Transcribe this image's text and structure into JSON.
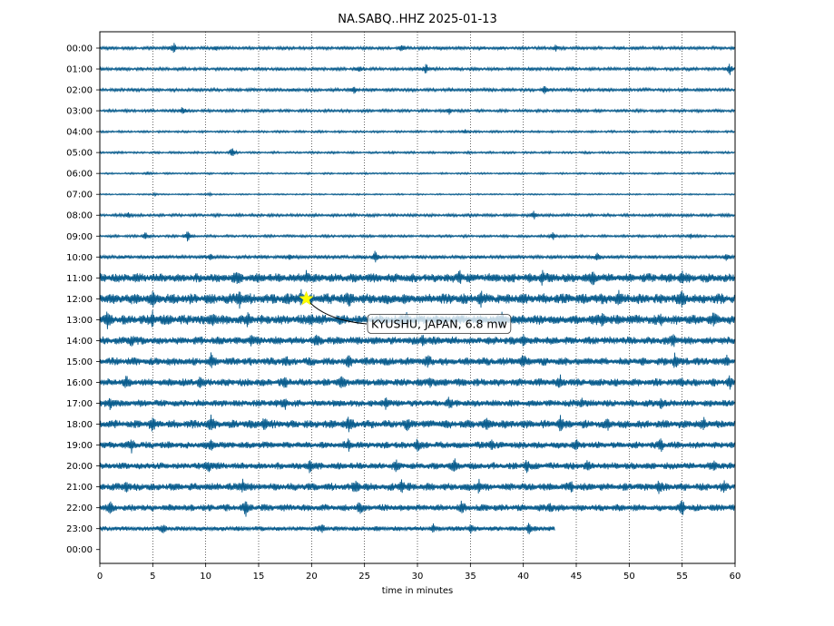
{
  "chart_data": {
    "type": "line",
    "title": "NA.SABQ..HHZ 2025-01-13",
    "xlabel": "time in minutes",
    "ylabel": "",
    "xlim": [
      0,
      60
    ],
    "x_ticks": [
      "0",
      "5",
      "10",
      "15",
      "20",
      "25",
      "30",
      "35",
      "40",
      "45",
      "50",
      "55",
      "60"
    ],
    "y_ticks": [
      "00:00",
      "01:00",
      "02:00",
      "03:00",
      "04:00",
      "05:00",
      "06:00",
      "07:00",
      "08:00",
      "09:00",
      "10:00",
      "11:00",
      "12:00",
      "13:00",
      "14:00",
      "15:00",
      "16:00",
      "17:00",
      "18:00",
      "19:00",
      "20:00",
      "21:00",
      "22:00",
      "23:00",
      "00:00"
    ],
    "grid": "vertical dotted at every 5 minutes",
    "trace_color": "#0a5d8e",
    "traces": [
      {
        "row": "00:00",
        "end_minute": 60,
        "noise": 0.9,
        "spikes": [
          [
            7.0,
            4.5
          ],
          [
            11.0,
            2.0
          ],
          [
            28.5,
            2.8
          ],
          [
            43.0,
            3.0
          ]
        ]
      },
      {
        "row": "01:00",
        "end_minute": 60,
        "noise": 0.9,
        "spikes": [
          [
            24.5,
            2.5
          ],
          [
            30.8,
            4.8
          ],
          [
            59.5,
            4.5
          ]
        ]
      },
      {
        "row": "02:00",
        "end_minute": 60,
        "noise": 0.9,
        "spikes": [
          [
            24.0,
            2.8
          ],
          [
            42.0,
            4.0
          ]
        ]
      },
      {
        "row": "03:00",
        "end_minute": 60,
        "noise": 0.8,
        "spikes": [
          [
            7.8,
            3.6
          ],
          [
            33.0,
            2.5
          ]
        ]
      },
      {
        "row": "04:00",
        "end_minute": 60,
        "noise": 0.6,
        "spikes": [
          [
            34.5,
            2.0
          ]
        ]
      },
      {
        "row": "05:00",
        "end_minute": 60,
        "noise": 0.6,
        "spikes": [
          [
            12.5,
            4.6
          ]
        ]
      },
      {
        "row": "06:00",
        "end_minute": 60,
        "noise": 0.5,
        "spikes": [
          [
            4.5,
            1.0
          ]
        ]
      },
      {
        "row": "07:00",
        "end_minute": 60,
        "noise": 0.4,
        "spikes": [
          [
            5.2,
            1.0
          ],
          [
            10.4,
            1.0
          ]
        ]
      },
      {
        "row": "08:00",
        "end_minute": 60,
        "noise": 0.8,
        "spikes": [
          [
            2.7,
            2.3
          ],
          [
            41.0,
            3.4
          ]
        ]
      },
      {
        "row": "09:00",
        "end_minute": 60,
        "noise": 0.7,
        "spikes": [
          [
            4.3,
            3.8
          ],
          [
            8.3,
            5.0
          ],
          [
            42.8,
            3.2
          ],
          [
            55.8,
            2.0
          ]
        ]
      },
      {
        "row": "10:00",
        "end_minute": 60,
        "noise": 1.0,
        "spikes": [
          [
            10.5,
            3.4
          ],
          [
            18.0,
            2.4
          ],
          [
            26.0,
            5.0
          ],
          [
            47.0,
            3.0
          ],
          [
            59.2,
            3.5
          ]
        ]
      },
      {
        "row": "11:00",
        "end_minute": 60,
        "noise": 2.6,
        "spikes": [
          [
            13.0,
            3.5
          ],
          [
            19.5,
            5.0
          ],
          [
            34.0,
            5.0
          ],
          [
            41.8,
            4.6
          ],
          [
            46.6,
            6.0
          ],
          [
            55.0,
            4.0
          ]
        ]
      },
      {
        "row": "12:00",
        "end_minute": 60,
        "noise": 3.0,
        "spikes": [
          [
            5.0,
            4.0
          ],
          [
            13.2,
            6.0
          ],
          [
            19.0,
            6.0
          ],
          [
            23.5,
            4.0
          ],
          [
            36.0,
            4.0
          ],
          [
            49.0,
            4.0
          ],
          [
            55.0,
            5.0
          ]
        ]
      },
      {
        "row": "13:00",
        "end_minute": 60,
        "noise": 2.8,
        "spikes": [
          [
            0.7,
            5.0
          ],
          [
            5.0,
            5.0
          ],
          [
            10.7,
            5.0
          ],
          [
            14.0,
            5.0
          ],
          [
            20.0,
            5.0
          ],
          [
            29.0,
            4.5
          ],
          [
            38.0,
            5.0
          ],
          [
            47.5,
            5.0
          ],
          [
            53.0,
            4.0
          ],
          [
            58.0,
            4.0
          ]
        ]
      },
      {
        "row": "14:00",
        "end_minute": 60,
        "noise": 2.3,
        "spikes": [
          [
            3.0,
            4.5
          ],
          [
            14.3,
            5.0
          ],
          [
            20.5,
            5.0
          ],
          [
            30.5,
            4.0
          ],
          [
            40.0,
            5.0
          ],
          [
            54.2,
            5.0
          ]
        ]
      },
      {
        "row": "15:00",
        "end_minute": 60,
        "noise": 2.3,
        "spikes": [
          [
            10.5,
            5.0
          ],
          [
            17.5,
            4.0
          ],
          [
            23.5,
            5.0
          ],
          [
            31.0,
            4.0
          ],
          [
            40.0,
            4.0
          ],
          [
            54.3,
            6.0
          ],
          [
            59.2,
            4.0
          ]
        ]
      },
      {
        "row": "16:00",
        "end_minute": 60,
        "noise": 2.2,
        "spikes": [
          [
            2.5,
            4.0
          ],
          [
            9.5,
            4.5
          ],
          [
            17.5,
            4.5
          ],
          [
            22.8,
            5.0
          ],
          [
            31.2,
            4.0
          ],
          [
            43.5,
            4.0
          ],
          [
            55.0,
            4.0
          ],
          [
            59.5,
            4.5
          ]
        ]
      },
      {
        "row": "17:00",
        "end_minute": 60,
        "noise": 2.0,
        "spikes": [
          [
            1.0,
            5.0
          ],
          [
            17.5,
            4.0
          ],
          [
            27.0,
            5.0
          ],
          [
            33.0,
            4.0
          ],
          [
            45.5,
            4.0
          ],
          [
            53.0,
            4.0
          ]
        ]
      },
      {
        "row": "18:00",
        "end_minute": 60,
        "noise": 2.4,
        "spikes": [
          [
            5.0,
            5.0
          ],
          [
            10.5,
            5.0
          ],
          [
            15.5,
            5.0
          ],
          [
            23.5,
            5.0
          ],
          [
            29.0,
            4.0
          ],
          [
            36.5,
            4.0
          ],
          [
            43.5,
            5.5
          ],
          [
            48.0,
            4.0
          ],
          [
            57.0,
            4.0
          ]
        ]
      },
      {
        "row": "19:00",
        "end_minute": 60,
        "noise": 2.0,
        "spikes": [
          [
            3.0,
            4.0
          ],
          [
            10.5,
            4.5
          ],
          [
            23.5,
            4.5
          ],
          [
            30.0,
            4.5
          ],
          [
            37.0,
            5.0
          ],
          [
            45.0,
            4.0
          ],
          [
            53.0,
            5.0
          ]
        ]
      },
      {
        "row": "20:00",
        "end_minute": 60,
        "noise": 2.0,
        "spikes": [
          [
            10.3,
            5.5
          ],
          [
            19.8,
            5.0
          ],
          [
            28.0,
            4.5
          ],
          [
            33.5,
            5.0
          ],
          [
            40.3,
            5.0
          ],
          [
            46.0,
            4.0
          ],
          [
            58.0,
            4.0
          ]
        ]
      },
      {
        "row": "21:00",
        "end_minute": 60,
        "noise": 2.2,
        "spikes": [
          [
            2.5,
            4.0
          ],
          [
            13.5,
            5.5
          ],
          [
            24.2,
            5.0
          ],
          [
            28.5,
            5.0
          ],
          [
            35.8,
            5.0
          ],
          [
            44.5,
            4.0
          ],
          [
            52.8,
            4.5
          ],
          [
            59.0,
            4.0
          ]
        ]
      },
      {
        "row": "22:00",
        "end_minute": 60,
        "noise": 2.0,
        "spikes": [
          [
            1.0,
            5.0
          ],
          [
            13.8,
            5.0
          ],
          [
            24.5,
            4.5
          ],
          [
            34.2,
            5.0
          ],
          [
            42.5,
            4.0
          ],
          [
            55.0,
            6.0
          ]
        ]
      },
      {
        "row": "23:00",
        "end_minute": 43,
        "noise": 1.4,
        "spikes": [
          [
            6.0,
            3.0
          ],
          [
            21.0,
            3.5
          ],
          [
            31.5,
            3.5
          ],
          [
            35.0,
            3.0
          ],
          [
            40.5,
            4.5
          ]
        ]
      }
    ],
    "event": {
      "label": "KYUSHU, JAPAN, 6.8 mw",
      "row": "12:00",
      "minute": 19.5,
      "marker": "star",
      "marker_color": "#ffff00"
    }
  }
}
